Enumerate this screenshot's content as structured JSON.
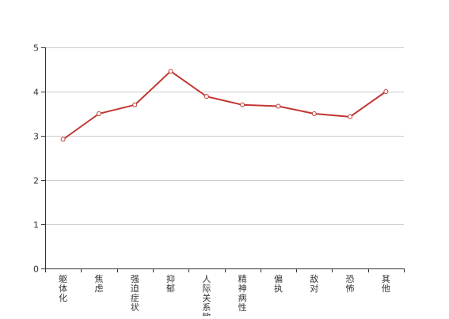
{
  "chart_data": {
    "type": "line",
    "categories": [
      "躯体化",
      "焦虑",
      "强迫症状",
      "抑郁",
      "人际关系敏感",
      "精神病性",
      "偏执",
      "敌对",
      "恐怖",
      "其他"
    ],
    "series": [
      {
        "values": [
          2.92,
          3.5,
          3.7,
          4.46,
          3.89,
          3.7,
          3.67,
          3.5,
          3.43,
          4.0
        ],
        "color": "#c23531"
      }
    ],
    "ylim": [
      0,
      5
    ],
    "yticks": [
      0,
      1,
      2,
      3,
      4,
      5
    ],
    "grid": true,
    "legend": "none",
    "title": "",
    "xlabel": "",
    "ylabel": ""
  }
}
